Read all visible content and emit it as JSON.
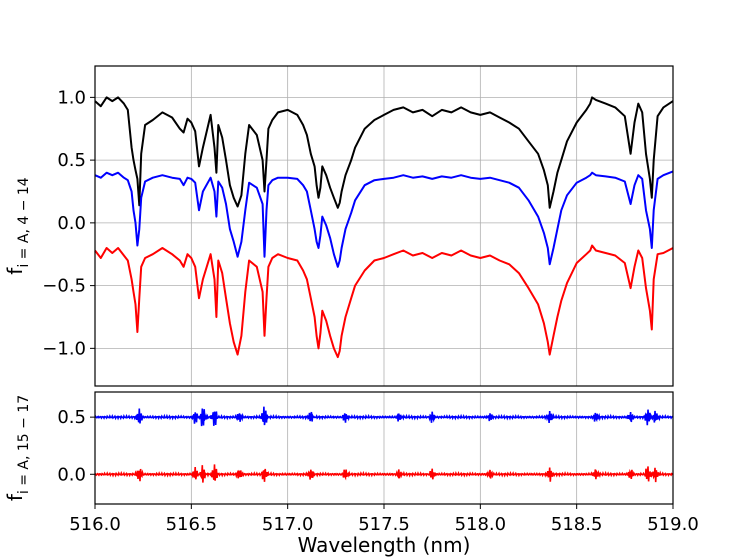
{
  "chart_data": [
    {
      "type": "line",
      "xlabel": "Wavelength (nm)",
      "ylabel_main": "f",
      "ylabel_sub": "i = A, 4 − 14",
      "xlim": [
        516.0,
        519.0
      ],
      "ylim": [
        -1.3,
        1.25
      ],
      "xticks": [
        516.0,
        516.5,
        517.0,
        517.5,
        518.0,
        518.5,
        519.0
      ],
      "xtick_labels": [
        "516.0",
        "516.5",
        "517.0",
        "517.5",
        "518.0",
        "518.5",
        "519.0"
      ],
      "yticks": [
        1.0,
        0.5,
        0.0,
        -0.5,
        -1.0
      ],
      "ytick_labels": [
        "1.0",
        "0.5",
        "0.0",
        "−0.5",
        "−1.0"
      ],
      "grid": true,
      "series": [
        {
          "color": "#000000",
          "x": [
            516.0,
            516.03,
            516.06,
            516.09,
            516.12,
            516.15,
            516.17,
            516.19,
            516.2,
            516.21,
            516.22,
            516.23,
            516.24,
            516.26,
            516.3,
            516.35,
            516.4,
            516.44,
            516.46,
            516.48,
            516.5,
            516.52,
            516.54,
            516.56,
            516.6,
            516.62,
            516.63,
            516.64,
            516.66,
            516.68,
            516.7,
            516.72,
            516.74,
            516.76,
            516.78,
            516.8,
            516.84,
            516.87,
            516.88,
            516.89,
            516.9,
            516.92,
            516.95,
            517.0,
            517.05,
            517.08,
            517.1,
            517.12,
            517.14,
            517.15,
            517.16,
            517.17,
            517.18,
            517.2,
            517.22,
            517.24,
            517.26,
            517.27,
            517.28,
            517.3,
            517.33,
            517.35,
            517.4,
            517.45,
            517.5,
            517.55,
            517.6,
            517.65,
            517.7,
            517.75,
            517.8,
            517.85,
            517.9,
            517.95,
            518.0,
            518.05,
            518.1,
            518.15,
            518.2,
            518.25,
            518.3,
            518.33,
            518.35,
            518.36,
            518.38,
            518.4,
            518.42,
            518.45,
            518.5,
            518.55,
            518.57,
            518.58,
            518.6,
            518.65,
            518.7,
            518.75,
            518.78,
            518.8,
            518.82,
            518.84,
            518.86,
            518.88,
            518.89,
            518.9,
            518.92,
            518.95,
            519.0
          ],
          "y": [
            0.97,
            0.93,
            1.0,
            0.97,
            1.0,
            0.95,
            0.9,
            0.6,
            0.5,
            0.42,
            0.35,
            0.14,
            0.55,
            0.78,
            0.82,
            0.88,
            0.84,
            0.75,
            0.72,
            0.83,
            0.8,
            0.73,
            0.45,
            0.6,
            0.86,
            0.6,
            0.4,
            0.78,
            0.68,
            0.5,
            0.3,
            0.2,
            0.13,
            0.22,
            0.55,
            0.78,
            0.7,
            0.5,
            0.25,
            0.5,
            0.75,
            0.82,
            0.88,
            0.9,
            0.86,
            0.78,
            0.7,
            0.55,
            0.45,
            0.3,
            0.2,
            0.28,
            0.45,
            0.38,
            0.28,
            0.2,
            0.12,
            0.16,
            0.25,
            0.38,
            0.5,
            0.6,
            0.75,
            0.82,
            0.86,
            0.9,
            0.92,
            0.88,
            0.9,
            0.85,
            0.9,
            0.88,
            0.92,
            0.88,
            0.86,
            0.88,
            0.84,
            0.8,
            0.75,
            0.65,
            0.55,
            0.42,
            0.3,
            0.12,
            0.25,
            0.4,
            0.5,
            0.65,
            0.8,
            0.9,
            0.95,
            1.0,
            0.98,
            0.95,
            0.92,
            0.85,
            0.55,
            0.8,
            0.95,
            0.88,
            0.55,
            0.35,
            0.2,
            0.5,
            0.85,
            0.92,
            0.97
          ]
        },
        {
          "color": "#0000ff",
          "x": [
            516.0,
            516.03,
            516.06,
            516.09,
            516.12,
            516.15,
            516.17,
            516.19,
            516.2,
            516.21,
            516.22,
            516.23,
            516.24,
            516.26,
            516.3,
            516.35,
            516.4,
            516.44,
            516.46,
            516.48,
            516.5,
            516.52,
            516.54,
            516.56,
            516.6,
            516.62,
            516.63,
            516.64,
            516.66,
            516.68,
            516.7,
            516.72,
            516.74,
            516.76,
            516.78,
            516.8,
            516.84,
            516.87,
            516.88,
            516.89,
            516.9,
            516.92,
            516.95,
            517.0,
            517.05,
            517.08,
            517.1,
            517.12,
            517.14,
            517.15,
            517.16,
            517.17,
            517.18,
            517.2,
            517.22,
            517.24,
            517.26,
            517.27,
            517.28,
            517.3,
            517.33,
            517.35,
            517.4,
            517.45,
            517.5,
            517.55,
            517.6,
            517.65,
            517.7,
            517.75,
            517.8,
            517.85,
            517.9,
            517.95,
            518.0,
            518.05,
            518.1,
            518.15,
            518.2,
            518.25,
            518.3,
            518.33,
            518.35,
            518.36,
            518.38,
            518.4,
            518.42,
            518.45,
            518.5,
            518.55,
            518.57,
            518.58,
            518.6,
            518.65,
            518.7,
            518.75,
            518.78,
            518.8,
            518.82,
            518.84,
            518.86,
            518.88,
            518.89,
            518.9,
            518.92,
            518.95,
            519.0
          ],
          "y": [
            0.38,
            0.36,
            0.4,
            0.38,
            0.4,
            0.36,
            0.34,
            0.25,
            0.1,
            0.0,
            -0.18,
            -0.05,
            0.2,
            0.33,
            0.36,
            0.38,
            0.36,
            0.35,
            0.3,
            0.36,
            0.35,
            0.32,
            0.1,
            0.25,
            0.36,
            0.25,
            0.05,
            0.33,
            0.28,
            0.15,
            -0.05,
            -0.15,
            -0.27,
            -0.15,
            0.1,
            0.32,
            0.28,
            0.15,
            -0.27,
            0.1,
            0.3,
            0.34,
            0.36,
            0.36,
            0.35,
            0.3,
            0.25,
            0.1,
            -0.05,
            -0.15,
            -0.2,
            -0.1,
            0.05,
            -0.02,
            -0.12,
            -0.25,
            -0.35,
            -0.3,
            -0.2,
            -0.05,
            0.08,
            0.18,
            0.3,
            0.34,
            0.35,
            0.36,
            0.38,
            0.36,
            0.37,
            0.35,
            0.37,
            0.36,
            0.38,
            0.36,
            0.35,
            0.36,
            0.34,
            0.32,
            0.28,
            0.18,
            0.05,
            -0.08,
            -0.2,
            -0.33,
            -0.2,
            -0.05,
            0.1,
            0.22,
            0.32,
            0.36,
            0.38,
            0.4,
            0.38,
            0.37,
            0.36,
            0.33,
            0.15,
            0.3,
            0.38,
            0.35,
            0.1,
            -0.05,
            -0.2,
            0.1,
            0.35,
            0.38,
            0.41
          ]
        },
        {
          "color": "#ff0000",
          "x": [
            516.0,
            516.03,
            516.06,
            516.09,
            516.12,
            516.15,
            516.17,
            516.19,
            516.2,
            516.21,
            516.22,
            516.23,
            516.24,
            516.26,
            516.3,
            516.35,
            516.4,
            516.44,
            516.46,
            516.48,
            516.5,
            516.52,
            516.54,
            516.56,
            516.6,
            516.62,
            516.63,
            516.64,
            516.66,
            516.68,
            516.7,
            516.72,
            516.74,
            516.76,
            516.78,
            516.8,
            516.84,
            516.87,
            516.88,
            516.89,
            516.9,
            516.92,
            516.95,
            517.0,
            517.05,
            517.08,
            517.1,
            517.12,
            517.14,
            517.15,
            517.16,
            517.17,
            517.18,
            517.2,
            517.22,
            517.24,
            517.26,
            517.27,
            517.28,
            517.3,
            517.33,
            517.35,
            517.4,
            517.45,
            517.5,
            517.55,
            517.6,
            517.65,
            517.7,
            517.75,
            517.8,
            517.85,
            517.9,
            517.95,
            518.0,
            518.05,
            518.1,
            518.15,
            518.2,
            518.25,
            518.3,
            518.33,
            518.35,
            518.36,
            518.38,
            518.4,
            518.42,
            518.45,
            518.5,
            518.55,
            518.57,
            518.58,
            518.6,
            518.65,
            518.7,
            518.75,
            518.78,
            518.8,
            518.82,
            518.84,
            518.86,
            518.88,
            518.89,
            518.9,
            518.92,
            518.95,
            519.0
          ],
          "y": [
            -0.22,
            -0.28,
            -0.2,
            -0.24,
            -0.2,
            -0.26,
            -0.3,
            -0.45,
            -0.55,
            -0.65,
            -0.87,
            -0.6,
            -0.35,
            -0.28,
            -0.25,
            -0.2,
            -0.25,
            -0.3,
            -0.35,
            -0.25,
            -0.28,
            -0.35,
            -0.6,
            -0.45,
            -0.25,
            -0.45,
            -0.75,
            -0.3,
            -0.4,
            -0.6,
            -0.8,
            -0.95,
            -1.05,
            -0.9,
            -0.55,
            -0.3,
            -0.35,
            -0.55,
            -0.9,
            -0.6,
            -0.35,
            -0.28,
            -0.25,
            -0.28,
            -0.3,
            -0.38,
            -0.45,
            -0.6,
            -0.75,
            -0.9,
            -1.0,
            -0.88,
            -0.7,
            -0.78,
            -0.9,
            -1.0,
            -1.07,
            -1.02,
            -0.9,
            -0.75,
            -0.6,
            -0.5,
            -0.38,
            -0.3,
            -0.28,
            -0.25,
            -0.22,
            -0.26,
            -0.24,
            -0.28,
            -0.24,
            -0.26,
            -0.22,
            -0.26,
            -0.28,
            -0.26,
            -0.3,
            -0.33,
            -0.4,
            -0.52,
            -0.65,
            -0.8,
            -0.95,
            -1.05,
            -0.9,
            -0.75,
            -0.62,
            -0.48,
            -0.32,
            -0.25,
            -0.22,
            -0.18,
            -0.22,
            -0.24,
            -0.26,
            -0.32,
            -0.52,
            -0.35,
            -0.22,
            -0.28,
            -0.52,
            -0.7,
            -0.85,
            -0.45,
            -0.25,
            -0.24,
            -0.2
          ]
        }
      ]
    },
    {
      "type": "line",
      "xlabel": "Wavelength (nm)",
      "ylabel_main": "f",
      "ylabel_sub": "i = A, 15 − 17",
      "xlim": [
        516.0,
        519.0
      ],
      "ylim": [
        -0.26,
        0.72
      ],
      "yticks": [
        0.5,
        0.0
      ],
      "ytick_labels": [
        "0.5",
        "0.0"
      ],
      "grid": true,
      "series": [
        {
          "color": "#0000ff",
          "baseline": 0.5,
          "bursts": [
            {
              "x": 516.23,
              "amp": 0.08
            },
            {
              "x": 516.52,
              "amp": 0.06
            },
            {
              "x": 516.56,
              "amp": 0.1
            },
            {
              "x": 516.62,
              "amp": 0.09
            },
            {
              "x": 516.75,
              "amp": 0.05
            },
            {
              "x": 516.88,
              "amp": 0.1
            },
            {
              "x": 517.12,
              "amp": 0.05
            },
            {
              "x": 517.3,
              "amp": 0.05
            },
            {
              "x": 517.58,
              "amp": 0.04
            },
            {
              "x": 517.75,
              "amp": 0.05
            },
            {
              "x": 518.05,
              "amp": 0.04
            },
            {
              "x": 518.36,
              "amp": 0.06
            },
            {
              "x": 518.6,
              "amp": 0.05
            },
            {
              "x": 518.78,
              "amp": 0.05
            },
            {
              "x": 518.87,
              "amp": 0.08
            },
            {
              "x": 518.91,
              "amp": 0.06
            }
          ]
        },
        {
          "color": "#ff0000",
          "baseline": 0.0,
          "bursts": [
            {
              "x": 516.23,
              "amp": 0.07
            },
            {
              "x": 516.52,
              "amp": 0.06
            },
            {
              "x": 516.56,
              "amp": 0.08
            },
            {
              "x": 516.62,
              "amp": 0.09
            },
            {
              "x": 516.75,
              "amp": 0.05
            },
            {
              "x": 516.88,
              "amp": 0.07
            },
            {
              "x": 517.12,
              "amp": 0.05
            },
            {
              "x": 517.3,
              "amp": 0.05
            },
            {
              "x": 517.58,
              "amp": 0.04
            },
            {
              "x": 517.75,
              "amp": 0.05
            },
            {
              "x": 518.05,
              "amp": 0.04
            },
            {
              "x": 518.36,
              "amp": 0.07
            },
            {
              "x": 518.6,
              "amp": 0.05
            },
            {
              "x": 518.78,
              "amp": 0.05
            },
            {
              "x": 518.87,
              "amp": 0.08
            },
            {
              "x": 518.91,
              "amp": 0.07
            }
          ]
        }
      ]
    }
  ]
}
